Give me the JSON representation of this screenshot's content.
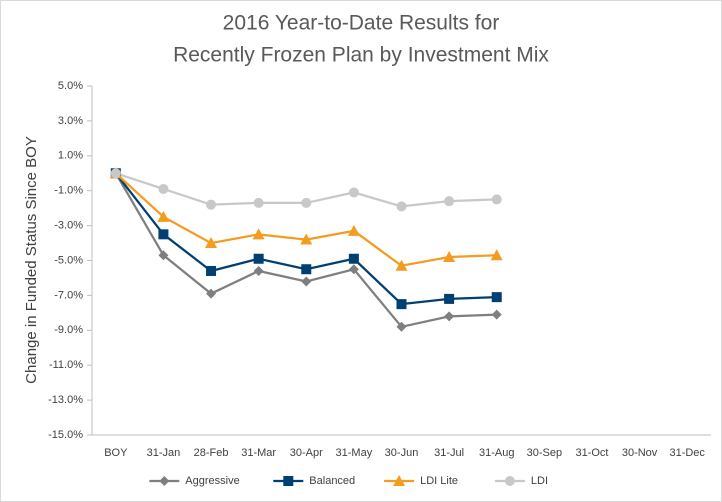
{
  "chart_data": {
    "type": "line",
    "title": [
      "2016 Year-to-Date Results for",
      "Recently Frozen Plan by Investment Mix"
    ],
    "y_label": "Change in Funded Status Since BOY",
    "categories": [
      "BOY",
      "31-Jan",
      "28-Feb",
      "31-Mar",
      "30-Apr",
      "31-May",
      "30-Jun",
      "31-Jul",
      "31-Aug",
      "30-Sep",
      "31-Oct",
      "30-Nov",
      "31-Dec"
    ],
    "series": [
      {
        "name": "Aggressive",
        "color": "#7f7f7f",
        "marker": "diamond",
        "values": [
          0,
          -4.7,
          -6.9,
          -5.6,
          -6.2,
          -5.5,
          -8.8,
          -8.2,
          -8.1,
          null,
          null,
          null,
          null
        ]
      },
      {
        "name": "Balanced",
        "color": "#003f72",
        "marker": "square",
        "values": [
          0,
          -3.5,
          -5.6,
          -4.9,
          -5.5,
          -4.9,
          -7.5,
          -7.2,
          -7.1,
          null,
          null,
          null,
          null
        ]
      },
      {
        "name": "LDI Lite",
        "color": "#f39c1f",
        "marker": "triangle",
        "values": [
          0,
          -2.5,
          -4.0,
          -3.5,
          -3.8,
          -3.3,
          -5.3,
          -4.8,
          -4.7,
          null,
          null,
          null,
          null
        ]
      },
      {
        "name": "LDI",
        "color": "#c8c8c8",
        "marker": "circle",
        "values": [
          0,
          -0.9,
          -1.8,
          -1.7,
          -1.7,
          -1.1,
          -1.9,
          -1.6,
          -1.5,
          null,
          null,
          null,
          null
        ]
      }
    ],
    "ylim": [
      -15,
      5
    ],
    "yticks": [
      {
        "value": 5,
        "label": "5.0%"
      },
      {
        "value": 3,
        "label": "3.0%"
      },
      {
        "value": 1,
        "label": "1.0%"
      },
      {
        "value": -1,
        "label": "-1.0%"
      },
      {
        "value": -3,
        "label": "-3.0%"
      },
      {
        "value": -5,
        "label": "-5.0%"
      },
      {
        "value": -7,
        "label": "-7.0%"
      },
      {
        "value": -9,
        "label": "-9.0%"
      },
      {
        "value": -11,
        "label": "-11.0%"
      },
      {
        "value": -13,
        "label": "-13.0%"
      },
      {
        "value": -15,
        "label": "-15.0%"
      }
    ],
    "grid": false,
    "legend": "bottom"
  }
}
